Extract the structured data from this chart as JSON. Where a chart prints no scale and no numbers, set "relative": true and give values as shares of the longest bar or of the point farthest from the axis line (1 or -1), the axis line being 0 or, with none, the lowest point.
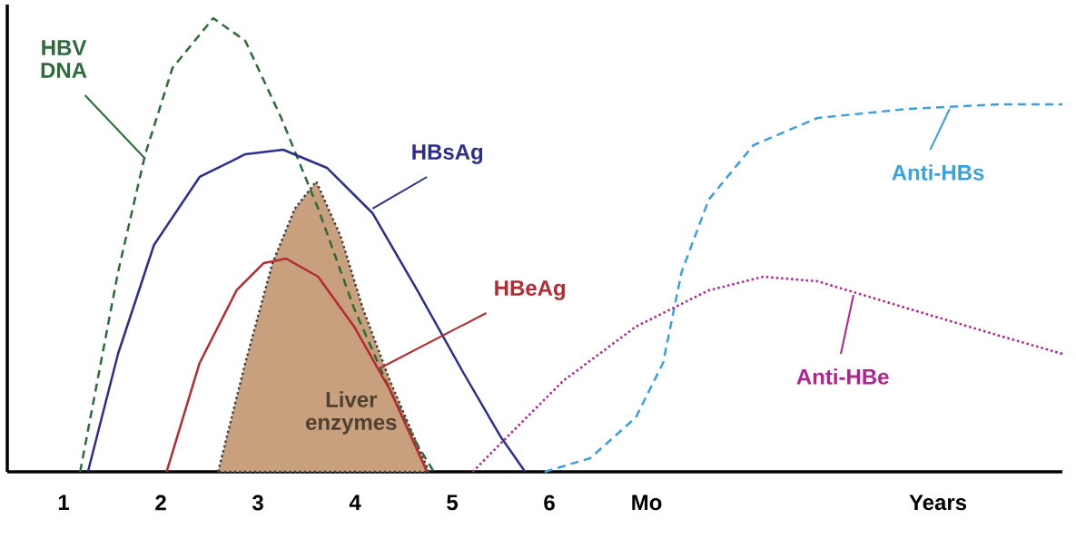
{
  "chart_data": {
    "type": "line",
    "relative": true,
    "xlim": [
      0.42,
      11.28
    ],
    "xticks": [
      1,
      2,
      3,
      4,
      5,
      6,
      {
        "value": 7,
        "label": "Mo"
      },
      {
        "value": 10,
        "label": "Years"
      }
    ],
    "series": [
      {
        "name": "HBV DNA",
        "color": "#2e6b3a",
        "line_style": "dashed",
        "x": [
          1.17,
          1.56,
          1.84,
          2.12,
          2.54,
          2.87,
          3.24,
          3.62,
          3.99,
          4.36,
          4.64,
          4.81
        ],
        "values": [
          0,
          0.44,
          0.7,
          0.89,
          1.0,
          0.95,
          0.78,
          0.58,
          0.36,
          0.18,
          0.06,
          0
        ]
      },
      {
        "name": "HBsAg",
        "color": "#2b2e8c",
        "line_style": "solid",
        "x": [
          1.25,
          1.56,
          1.93,
          2.4,
          2.87,
          3.26,
          3.71,
          4.18,
          4.64,
          5.11,
          5.49,
          5.75
        ],
        "values": [
          0,
          0.26,
          0.5,
          0.65,
          0.7,
          0.71,
          0.67,
          0.57,
          0.4,
          0.22,
          0.08,
          0
        ]
      },
      {
        "name": "Liver enzymes",
        "type": "area",
        "color": "#c8a07e",
        "line_style": "dotted",
        "x": [
          2.59,
          2.87,
          3.15,
          3.38,
          3.6,
          3.85,
          4.08,
          4.36,
          4.6,
          4.76
        ],
        "values": [
          0,
          0.24,
          0.46,
          0.58,
          0.64,
          0.52,
          0.36,
          0.2,
          0.08,
          0
        ]
      },
      {
        "name": "HBeAg",
        "color": "#b52a33",
        "line_style": "solid",
        "x": [
          2.06,
          2.4,
          2.78,
          3.06,
          3.29,
          3.62,
          3.99,
          4.36,
          4.74
        ],
        "values": [
          0,
          0.24,
          0.4,
          0.46,
          0.47,
          0.43,
          0.32,
          0.18,
          0
        ]
      },
      {
        "name": "Anti-HBs",
        "color": "#3aa0e0",
        "line_style": "dashed",
        "x": [
          5.95,
          6.42,
          6.89,
          7.17,
          7.36,
          7.64,
          8.1,
          8.76,
          9.69,
          10.63,
          11.28
        ],
        "values": [
          0,
          0.03,
          0.12,
          0.24,
          0.44,
          0.6,
          0.72,
          0.78,
          0.8,
          0.81,
          0.81
        ]
      },
      {
        "name": "Anti-HBe",
        "color": "#b0228c",
        "line_style": "dotted",
        "x": [
          5.21,
          5.58,
          6.14,
          6.89,
          7.64,
          8.2,
          8.76,
          9.69,
          10.63,
          11.28
        ],
        "values": [
          0,
          0.08,
          0.2,
          0.32,
          0.4,
          0.43,
          0.42,
          0.36,
          0.3,
          0.26
        ]
      }
    ]
  }
}
